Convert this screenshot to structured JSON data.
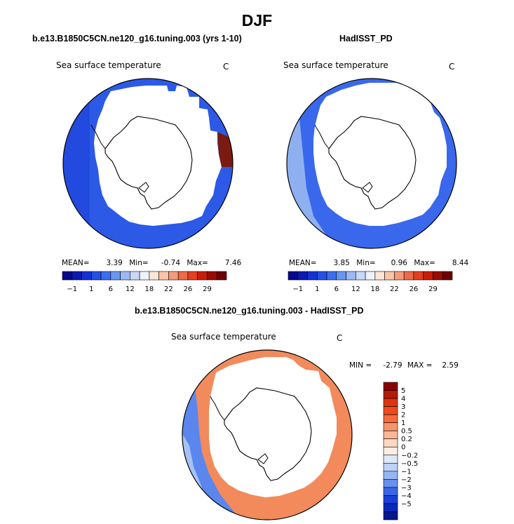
{
  "title": "DJF",
  "panels": [
    {
      "id": "model",
      "case_title": "b.e13.B1850C5CN.ne120_g16.tuning.003 (yrs 1-10)",
      "variable": "Sea surface temperature",
      "units": "C",
      "stats": {
        "mean_label": "MEAN=",
        "mean": "3.39",
        "min_label": "Min=",
        "min": "-0.74",
        "max_label": "Max=",
        "max": "7.46"
      }
    },
    {
      "id": "obs",
      "case_title": "HadISST_PD",
      "variable": "Sea surface temperature",
      "units": "C",
      "stats": {
        "mean_label": "MEAN=",
        "mean": "3.85",
        "min_label": "Min=",
        "min": "0.96",
        "max_label": "Max=",
        "max": "8.44"
      }
    },
    {
      "id": "diff",
      "case_title": "b.e13.B1850C5CN.ne120_g16.tuning.003 - HadISST_PD",
      "variable": "Sea surface temperature",
      "units": "C",
      "stats": {
        "min_label": "MIN =",
        "min": "-2.79",
        "max_label": "MAX =",
        "max": "2.59"
      }
    }
  ],
  "abs_colorbar": {
    "labels": [
      "-1",
      "1",
      "6",
      "12",
      "18",
      "22",
      "26",
      "29"
    ],
    "colors": [
      "#080a8a",
      "#0c1ab0",
      "#1432d2",
      "#2450e6",
      "#3c6ef0",
      "#6896f2",
      "#9ab8f4",
      "#c8d8f8",
      "#eef2fb",
      "#fde6d6",
      "#f9c4a8",
      "#f49a7a",
      "#ee6a48",
      "#e44020",
      "#c81e08",
      "#9a0c00",
      "#6e0000"
    ]
  },
  "diff_colorbar": {
    "labels": [
      "5",
      "4",
      "3",
      "2",
      "1",
      "0.5",
      "0.2",
      "0",
      "-0.2",
      "-0.5",
      "-1",
      "-2",
      "-3",
      "-4",
      "-5"
    ],
    "colors": [
      "#8a0000",
      "#b81a08",
      "#dc3410",
      "#f04a1c",
      "#f66a3c",
      "#f8946c",
      "#fab898",
      "#fcd8c4",
      "#fbeee6",
      "#dce8f8",
      "#bcd2f6",
      "#96b6f2",
      "#6890ee",
      "#3a64e6",
      "#1a40d8",
      "#0c28b8",
      "#051690"
    ]
  },
  "colors": {
    "model_ring": "#2c5ae6",
    "obs_ring": "#3a68ec",
    "obs_ring_light": "#8fb0f0",
    "diff_red": "#f28a5c",
    "diff_blue": "#5a86ee",
    "diff_light_blue": "#a6c2f4",
    "ice": "#ffffff",
    "coast": "#000000"
  }
}
